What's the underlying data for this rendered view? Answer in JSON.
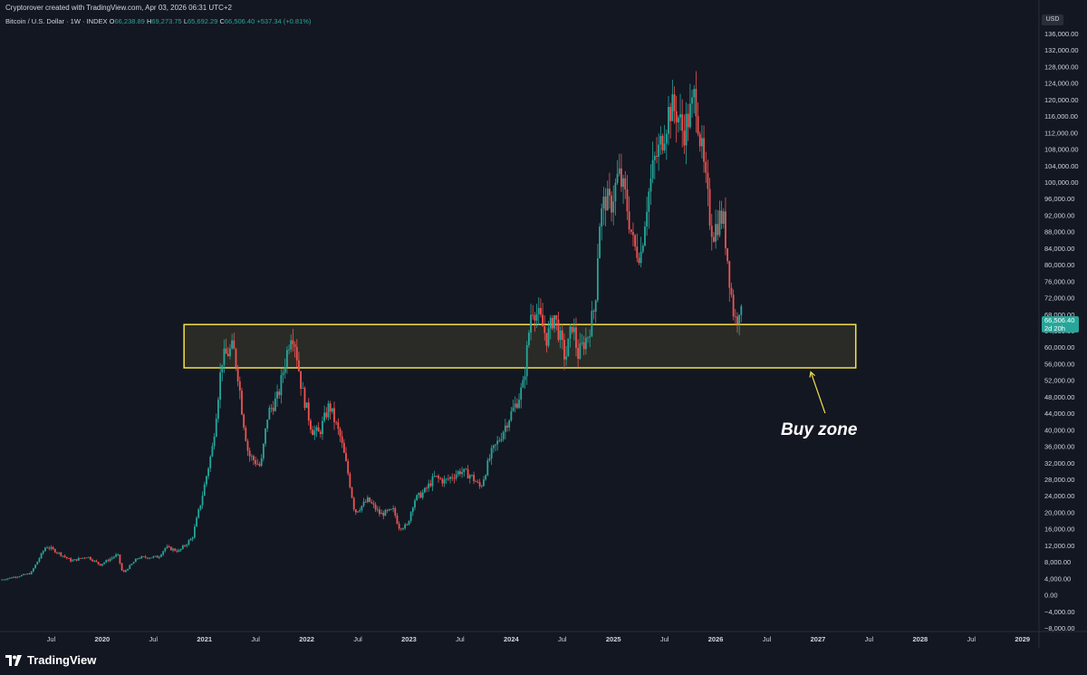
{
  "header": {
    "author_line": "Cryptorover created with TradingView.com, Apr 03, 2026 06:31 UTC+2",
    "symbol": "Bitcoin / U.S. Dollar · 1W · INDEX",
    "open_label": "O",
    "open": "66,238.89",
    "high_label": "H",
    "high": "69,273.75",
    "low_label": "L",
    "low": "65,692.29",
    "close_label": "C",
    "close": "66,506.40",
    "change": "+537.34 (+0.81%)"
  },
  "currency": "USD",
  "price_badge": {
    "price": "66,506.40",
    "countdown": "2d 20h"
  },
  "branding": {
    "logo_text": "TradingView"
  },
  "annotation": {
    "text": "Buy zone"
  },
  "colors": {
    "background": "#131722",
    "up": "#26a69a",
    "down": "#ef5350",
    "zone": "#f5e04b",
    "text": "#d1d4dc"
  },
  "chart_data": {
    "type": "candlestick",
    "ylim": [
      -8000,
      136000
    ],
    "y_ticks": [
      "136,000.00",
      "132,000.00",
      "128,000.00",
      "124,000.00",
      "120,000.00",
      "116,000.00",
      "112,000.00",
      "108,000.00",
      "104,000.00",
      "100,000.00",
      "96,000.00",
      "92,000.00",
      "88,000.00",
      "84,000.00",
      "80,000.00",
      "76,000.00",
      "72,000.00",
      "68,000.00",
      "64,000.00",
      "60,000.00",
      "56,000.00",
      "52,000.00",
      "48,000.00",
      "44,000.00",
      "40,000.00",
      "36,000.00",
      "32,000.00",
      "28,000.00",
      "24,000.00",
      "20,000.00",
      "16,000.00",
      "12,000.00",
      "8,000.00",
      "4,000.00",
      "0.00",
      "−4,000.00",
      "−8,000.00"
    ],
    "x_ticks": [
      {
        "label": "Jul",
        "t": 2019.5,
        "bold": false
      },
      {
        "label": "2020",
        "t": 2020.0,
        "bold": true
      },
      {
        "label": "Jul",
        "t": 2020.5,
        "bold": false
      },
      {
        "label": "2021",
        "t": 2021.0,
        "bold": true
      },
      {
        "label": "Jul",
        "t": 2021.5,
        "bold": false
      },
      {
        "label": "2022",
        "t": 2022.0,
        "bold": true
      },
      {
        "label": "Jul",
        "t": 2022.5,
        "bold": false
      },
      {
        "label": "2023",
        "t": 2023.0,
        "bold": true
      },
      {
        "label": "Jul",
        "t": 2023.5,
        "bold": false
      },
      {
        "label": "2024",
        "t": 2024.0,
        "bold": true
      },
      {
        "label": "Jul",
        "t": 2024.5,
        "bold": false
      },
      {
        "label": "2025",
        "t": 2025.0,
        "bold": true
      },
      {
        "label": "Jul",
        "t": 2025.5,
        "bold": false
      },
      {
        "label": "2026",
        "t": 2026.0,
        "bold": true
      },
      {
        "label": "Jul",
        "t": 2026.5,
        "bold": false
      },
      {
        "label": "2027",
        "t": 2027.0,
        "bold": true
      },
      {
        "label": "Jul",
        "t": 2027.5,
        "bold": false
      },
      {
        "label": "2028",
        "t": 2028.0,
        "bold": true
      },
      {
        "label": "Jul",
        "t": 2028.5,
        "bold": false
      },
      {
        "label": "2029",
        "t": 2029.0,
        "bold": true
      }
    ],
    "x_range": [
      2019.0,
      2029.1
    ],
    "zone": {
      "low": 55000,
      "high": 65500,
      "t_start": 2020.8,
      "t_end": 2027.37
    },
    "annotation_arrow": {
      "from": {
        "t": 2027.07,
        "y": 44000
      },
      "to": {
        "t": 2026.93,
        "y": 54000
      }
    },
    "anchors": [
      [
        2019.0,
        3600
      ],
      [
        2019.3,
        5200
      ],
      [
        2019.45,
        11800
      ],
      [
        2019.55,
        10500
      ],
      [
        2019.7,
        8200
      ],
      [
        2019.85,
        9300
      ],
      [
        2019.98,
        7300
      ],
      [
        2020.15,
        9800
      ],
      [
        2020.2,
        5200
      ],
      [
        2020.35,
        9000
      ],
      [
        2020.55,
        9200
      ],
      [
        2020.62,
        11500
      ],
      [
        2020.75,
        10600
      ],
      [
        2020.88,
        13800
      ],
      [
        2020.97,
        23000
      ],
      [
        2021.08,
        36000
      ],
      [
        2021.17,
        57000
      ],
      [
        2021.28,
        60000
      ],
      [
        2021.33,
        53000
      ],
      [
        2021.37,
        44000
      ],
      [
        2021.43,
        34000
      ],
      [
        2021.55,
        31000
      ],
      [
        2021.62,
        44000
      ],
      [
        2021.72,
        48000
      ],
      [
        2021.8,
        58000
      ],
      [
        2021.85,
        64000
      ],
      [
        2021.88,
        62000
      ],
      [
        2021.95,
        50000
      ],
      [
        2022.05,
        40000
      ],
      [
        2022.12,
        39000
      ],
      [
        2022.22,
        46000
      ],
      [
        2022.33,
        38000
      ],
      [
        2022.4,
        30000
      ],
      [
        2022.47,
        20000
      ],
      [
        2022.6,
        23000
      ],
      [
        2022.72,
        19500
      ],
      [
        2022.85,
        20500
      ],
      [
        2022.9,
        16500
      ],
      [
        2022.98,
        16600
      ],
      [
        2023.05,
        23000
      ],
      [
        2023.15,
        25000
      ],
      [
        2023.25,
        28500
      ],
      [
        2023.35,
        27500
      ],
      [
        2023.5,
        30000
      ],
      [
        2023.6,
        29000
      ],
      [
        2023.7,
        26000
      ],
      [
        2023.8,
        34000
      ],
      [
        2023.88,
        37500
      ],
      [
        2023.97,
        42500
      ],
      [
        2024.06,
        47000
      ],
      [
        2024.12,
        51000
      ],
      [
        2024.17,
        63000
      ],
      [
        2024.2,
        70000
      ],
      [
        2024.28,
        67000
      ],
      [
        2024.35,
        62000
      ],
      [
        2024.42,
        68000
      ],
      [
        2024.48,
        62000
      ],
      [
        2024.53,
        57000
      ],
      [
        2024.6,
        66000
      ],
      [
        2024.65,
        58000
      ],
      [
        2024.75,
        63000
      ],
      [
        2024.82,
        70000
      ],
      [
        2024.86,
        90000
      ],
      [
        2024.92,
        96000
      ],
      [
        2024.97,
        94000
      ],
      [
        2025.05,
        102000
      ],
      [
        2025.12,
        96000
      ],
      [
        2025.2,
        84000
      ],
      [
        2025.27,
        83000
      ],
      [
        2025.32,
        94000
      ],
      [
        2025.4,
        105000
      ],
      [
        2025.45,
        108000
      ],
      [
        2025.55,
        118000
      ],
      [
        2025.62,
        117000
      ],
      [
        2025.68,
        112000
      ],
      [
        2025.77,
        118000
      ],
      [
        2025.8,
        122000
      ],
      [
        2025.85,
        110000
      ],
      [
        2025.88,
        104000
      ],
      [
        2025.95,
        90000
      ],
      [
        2025.98,
        88000
      ],
      [
        2026.05,
        92000
      ],
      [
        2026.08,
        90000
      ],
      [
        2026.13,
        78000
      ],
      [
        2026.17,
        69000
      ],
      [
        2026.2,
        66000
      ],
      [
        2026.23,
        70000
      ],
      [
        2026.26,
        66500
      ]
    ]
  }
}
